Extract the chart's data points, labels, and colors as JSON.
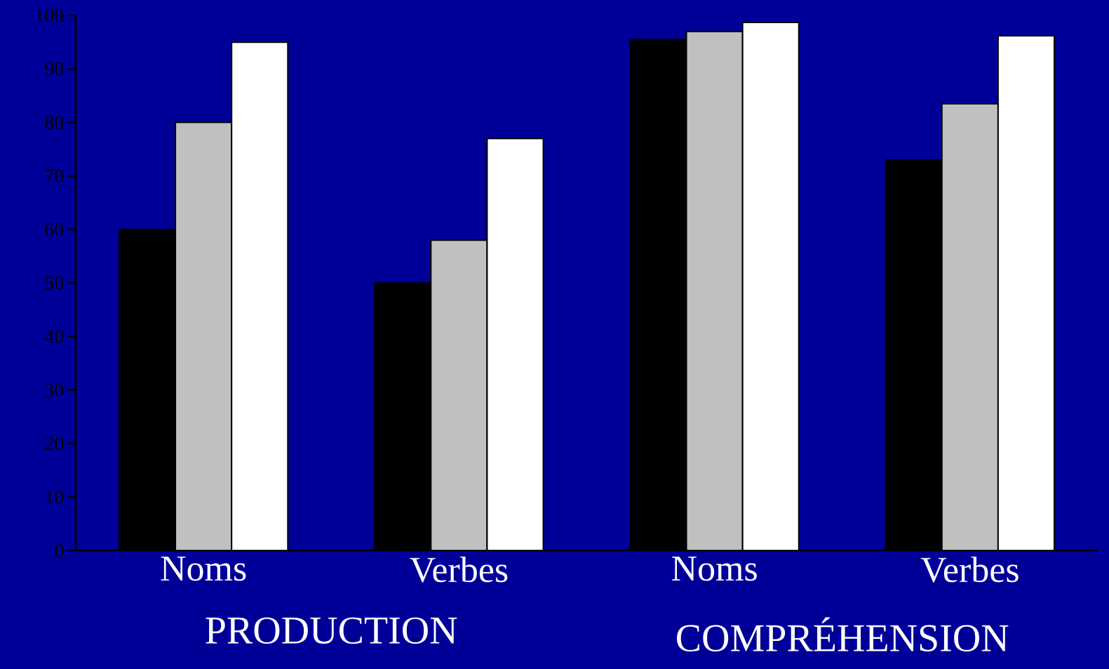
{
  "chart_data": {
    "type": "bar",
    "categories": [
      "Noms",
      "Verbes",
      "Noms",
      "Verbes"
    ],
    "series": [
      {
        "color": "#000000",
        "values": [
          60,
          50,
          95.5,
          73
        ]
      },
      {
        "color": "#c0c0c0",
        "values": [
          80,
          58,
          97,
          83.5
        ]
      },
      {
        "color": "#ffffff",
        "values": [
          95,
          77,
          98.7,
          96.2
        ]
      }
    ],
    "ylim": [
      0,
      100
    ],
    "yticks": [
      0,
      10,
      20,
      30,
      40,
      50,
      60,
      70,
      80,
      90,
      100
    ],
    "annotations": [
      "PRODUCTION",
      "COMPRÉHENSION"
    ]
  }
}
